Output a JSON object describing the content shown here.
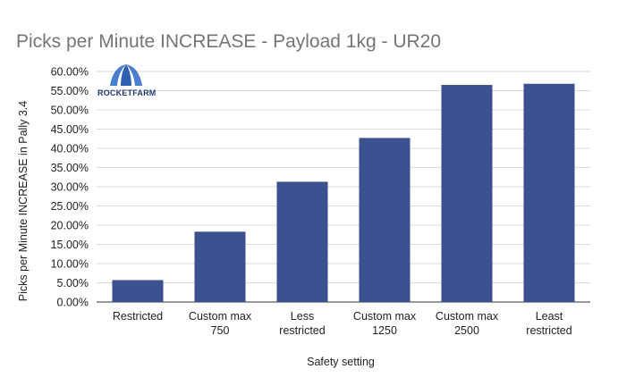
{
  "chart_data": {
    "type": "bar",
    "title": "Picks per Minute INCREASE - Payload 1kg - UR20",
    "xlabel": "Safety setting",
    "ylabel": "Picks per Minute INCREASE in Pally 3.4",
    "categories": [
      [
        "Restricted"
      ],
      [
        "Custom max",
        "750"
      ],
      [
        "Less",
        "restricted"
      ],
      [
        "Custom max",
        "1250"
      ],
      [
        "Custom max",
        "2500"
      ],
      [
        "Least",
        "restricted"
      ]
    ],
    "values": [
      0.057,
      0.183,
      0.313,
      0.427,
      0.565,
      0.568
    ],
    "y_ticks": [
      "0.00%",
      "5.00%",
      "10.00%",
      "15.00%",
      "20.00%",
      "25.00%",
      "30.00%",
      "35.00%",
      "40.00%",
      "45.00%",
      "50.00%",
      "55.00%",
      "60.00%"
    ],
    "ylim": [
      0,
      0.6
    ],
    "grid": true,
    "bar_color": "#3c5190"
  },
  "logo": {
    "text": "ROCKETFARM",
    "icon": "rocketfarm-logo",
    "color": "#1e3a78"
  }
}
